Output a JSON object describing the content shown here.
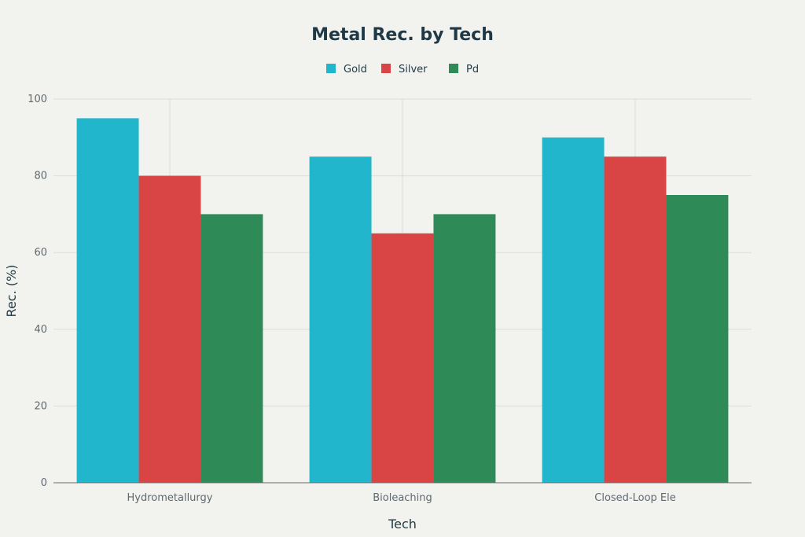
{
  "chart_data": {
    "type": "bar",
    "title": "Metal Rec. by Tech",
    "xlabel": "Tech",
    "ylabel": "Rec. (%)",
    "categories": [
      "Hydrometallurgy",
      "Bioleaching",
      "Closed-Loop Ele"
    ],
    "series": [
      {
        "name": "Gold",
        "color": "#22b6cc",
        "values": [
          95,
          85,
          90
        ]
      },
      {
        "name": "Silver",
        "color": "#d94545",
        "values": [
          80,
          65,
          85
        ]
      },
      {
        "name": "Pd",
        "color": "#2e8a57",
        "values": [
          70,
          70,
          75
        ]
      }
    ],
    "ylim": [
      0,
      100
    ],
    "yticks": [
      0,
      20,
      40,
      60,
      80,
      100
    ],
    "grid": true,
    "legend_position": "top-center"
  }
}
